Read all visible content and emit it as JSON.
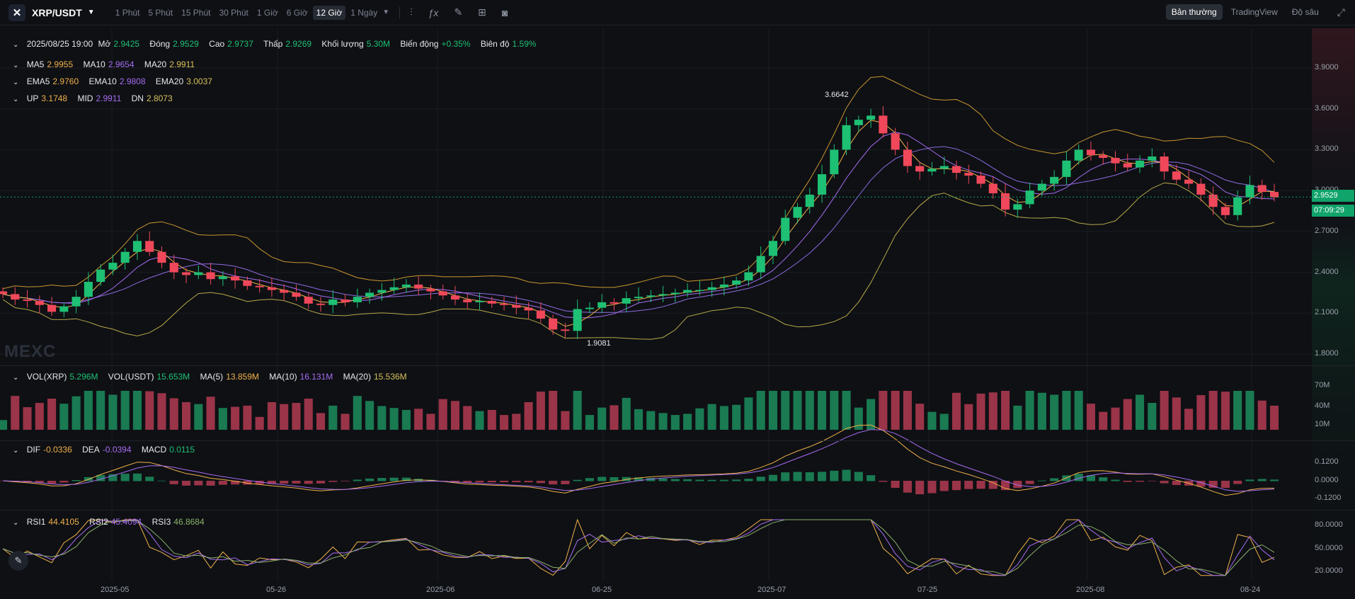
{
  "header": {
    "logo": "✕",
    "symbol": "XRP/USDT",
    "intervals": [
      "1 Phút",
      "5 Phút",
      "15 Phút",
      "30 Phút",
      "1 Giờ",
      "6 Giờ",
      "12 Giờ",
      "1 Ngày"
    ],
    "active_interval": "12 Giờ",
    "views": [
      "Bản thường",
      "TradingView",
      "Độ sâu"
    ],
    "active_view": "Bản thường",
    "icons": [
      "candle-type-icon",
      "indicator-fx-icon",
      "draw-pencil-icon",
      "layout-grid-icon",
      "camera-icon",
      "fullscreen-icon"
    ]
  },
  "ohlc": {
    "date": "2025/08/25 19:00",
    "open_k": "Mở",
    "open": "2.9425",
    "close_k": "Đóng",
    "close": "2.9529",
    "high_k": "Cao",
    "high": "2.9737",
    "low_k": "Thấp",
    "low": "2.9269",
    "vol_k": "Khối lượng",
    "vol": "5.30M",
    "chg_k": "Biến động",
    "chg": "+0.35%",
    "amp_k": "Biên độ",
    "amp": "1.59%"
  },
  "ma": {
    "ma5_k": "MA5",
    "ma5": "2.9955",
    "ma10_k": "MA10",
    "ma10": "2.9654",
    "ma20_k": "MA20",
    "ma20": "2.9911"
  },
  "ema": {
    "e5_k": "EMA5",
    "e5": "2.9760",
    "e10_k": "EMA10",
    "e10": "2.9808",
    "e20_k": "EMA20",
    "e20": "3.0037"
  },
  "boll": {
    "up_k": "UP",
    "up": "3.1748",
    "mid_k": "MID",
    "mid": "2.9911",
    "dn_k": "DN",
    "dn": "2.8073"
  },
  "vol": {
    "xrp_k": "VOL(XRP)",
    "xrp": "5.296M",
    "usdt_k": "VOL(USDT)",
    "usdt": "15.653M",
    "m5_k": "MA(5)",
    "m5": "13.859M",
    "m10_k": "MA(10)",
    "m10": "16.131M",
    "m20_k": "MA(20)",
    "m20": "15.536M"
  },
  "macd": {
    "dif_k": "DIF",
    "dif": "-0.0336",
    "dea_k": "DEA",
    "dea": "-0.0394",
    "macd_k": "MACD",
    "macd": "0.0115"
  },
  "rsi": {
    "r1_k": "RSI1",
    "r1": "44.4105",
    "r2_k": "RSI2",
    "r2": "45.4094",
    "r3_k": "RSI3",
    "r3": "46.8684"
  },
  "price_axis": [
    "3.9000",
    "3.6000",
    "3.3000",
    "3.0000",
    "2.7000",
    "2.4000",
    "2.1000",
    "1.8000"
  ],
  "vol_axis": [
    "70M",
    "40M",
    "10M"
  ],
  "macd_axis": [
    "0.1200",
    "0.0000",
    "-0.1200"
  ],
  "rsi_axis": [
    "80.0000",
    "50.0000",
    "20.0000"
  ],
  "last_price": "2.9529",
  "countdown": "07:09:29",
  "high_marker": "3.6642",
  "low_marker": "1.9081",
  "watermark": "MEXC",
  "x_labels": [
    "2025-05",
    "05-26",
    "2025-06",
    "06-25",
    "2025-07",
    "07-25",
    "2025-08",
    "08-24"
  ],
  "colors": {
    "up": "#1ec074",
    "down": "#f0485a",
    "ma5": "#f0b04a",
    "ma10": "#a66cf0",
    "ma20": "#d8c05a",
    "boll": "#e0a93a",
    "accent": "#10a36a"
  },
  "chart_data": {
    "type": "candlestick",
    "interval": "12h",
    "x_labels": [
      "2025-05",
      "05-26",
      "2025-06",
      "06-25",
      "2025-07",
      "07-25",
      "2025-08",
      "08-24"
    ],
    "ylim": [
      1.8,
      3.95
    ],
    "close_series": [
      2.24,
      2.2,
      2.19,
      2.16,
      2.11,
      2.15,
      2.22,
      2.33,
      2.42,
      2.47,
      2.55,
      2.63,
      2.55,
      2.47,
      2.4,
      2.38,
      2.4,
      2.35,
      2.37,
      2.34,
      2.3,
      2.29,
      2.27,
      2.25,
      2.22,
      2.17,
      2.16,
      2.2,
      2.18,
      2.22,
      2.25,
      2.27,
      2.29,
      2.31,
      2.28,
      2.26,
      2.23,
      2.2,
      2.18,
      2.19,
      2.17,
      2.16,
      2.14,
      2.12,
      2.06,
      1.98,
      1.97,
      2.13,
      2.14,
      2.18,
      2.17,
      2.21,
      2.22,
      2.23,
      2.24,
      2.25,
      2.27,
      2.27,
      2.29,
      2.31,
      2.34,
      2.4,
      2.52,
      2.63,
      2.8,
      2.88,
      2.97,
      3.12,
      3.3,
      3.48,
      3.52,
      3.55,
      3.42,
      3.3,
      3.18,
      3.14,
      3.16,
      3.18,
      3.13,
      3.11,
      3.05,
      2.98,
      2.86,
      2.9,
      3.0,
      3.05,
      3.1,
      3.22,
      3.3,
      3.26,
      3.24,
      3.2,
      3.17,
      3.22,
      3.25,
      3.14,
      3.08,
      3.05,
      2.97,
      2.88,
      2.82,
      2.95,
      3.04,
      2.99,
      2.95
    ],
    "ohlc_last": {
      "open": 2.9425,
      "close": 2.9529,
      "high": 2.9737,
      "low": 2.9269,
      "volume": "5.30M",
      "change": "+0.35%",
      "amplitude": "1.59%"
    },
    "marked_high": 3.6642,
    "marked_low": 1.9081,
    "last_price": 2.9529
  }
}
